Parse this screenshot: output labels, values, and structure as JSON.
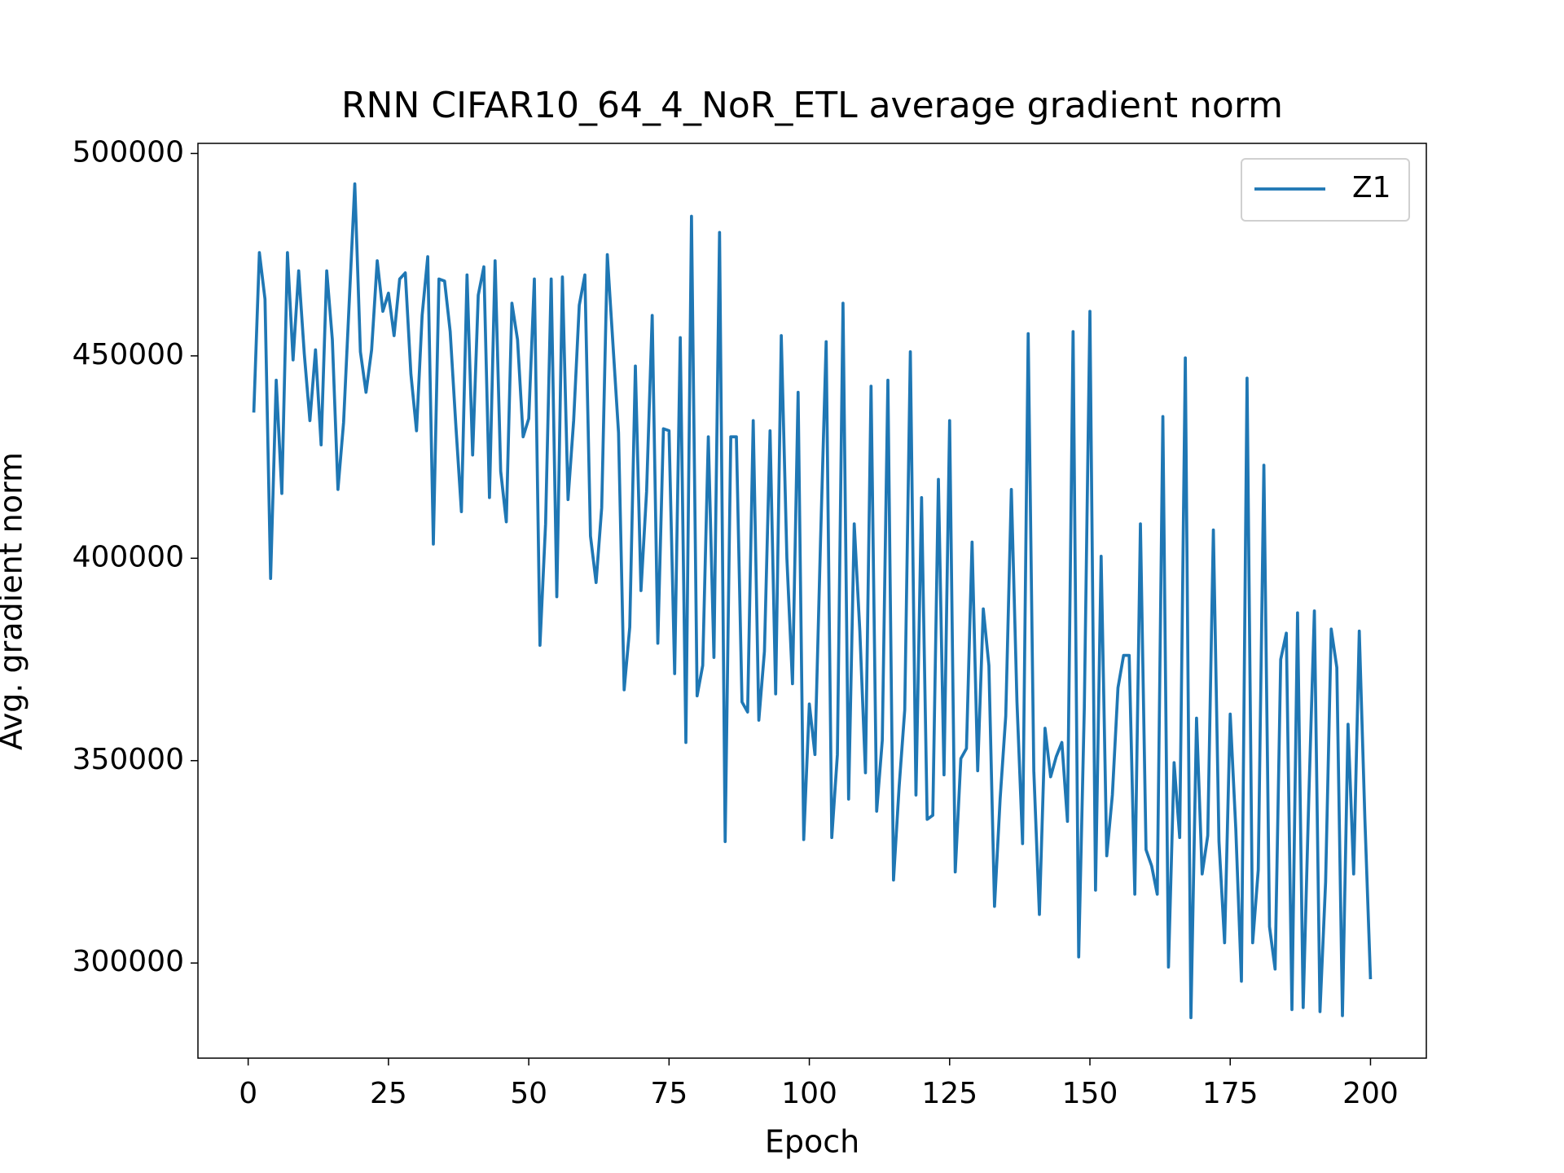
{
  "chart_data": {
    "type": "line",
    "title": "RNN CIFAR10_64_4_NoR_ETL average gradient norm",
    "xlabel": "Epoch",
    "ylabel": "Avg. gradient norm",
    "x": [
      1,
      2,
      3,
      4,
      5,
      6,
      7,
      8,
      9,
      10,
      11,
      12,
      13,
      14,
      15,
      16,
      17,
      18,
      19,
      20,
      21,
      22,
      23,
      24,
      25,
      26,
      27,
      28,
      29,
      30,
      31,
      32,
      33,
      34,
      35,
      36,
      37,
      38,
      39,
      40,
      41,
      42,
      43,
      44,
      45,
      46,
      47,
      48,
      49,
      50,
      51,
      52,
      53,
      54,
      55,
      56,
      57,
      58,
      59,
      60,
      61,
      62,
      63,
      64,
      65,
      66,
      67,
      68,
      69,
      70,
      71,
      72,
      73,
      74,
      75,
      76,
      77,
      78,
      79,
      80,
      81,
      82,
      83,
      84,
      85,
      86,
      87,
      88,
      89,
      90,
      91,
      92,
      93,
      94,
      95,
      96,
      97,
      98,
      99,
      100,
      101,
      102,
      103,
      104,
      105,
      106,
      107,
      108,
      109,
      110,
      111,
      112,
      113,
      114,
      115,
      116,
      117,
      118,
      119,
      120,
      121,
      122,
      123,
      124,
      125,
      126,
      127,
      128,
      129,
      130,
      131,
      132,
      133,
      134,
      135,
      136,
      137,
      138,
      139,
      140,
      141,
      142,
      143,
      144,
      145,
      146,
      147,
      148,
      149,
      150,
      151,
      152,
      153,
      154,
      155,
      156,
      157,
      158,
      159,
      160,
      161,
      162,
      163,
      164,
      165,
      166,
      167,
      168,
      169,
      170,
      171,
      172,
      173,
      174,
      175,
      176,
      177,
      178,
      179,
      180,
      181,
      182,
      183,
      184,
      185,
      186,
      187,
      188,
      189,
      190,
      191,
      192,
      193,
      194,
      195,
      196,
      197,
      198,
      199,
      200
    ],
    "series": [
      {
        "name": "Z1",
        "color": "#1f77b4",
        "values": [
          436000,
          475500,
          464000,
          395000,
          444000,
          416000,
          475500,
          449000,
          471000,
          450500,
          434000,
          451500,
          428000,
          471000,
          454000,
          417000,
          433500,
          463000,
          492500,
          451000,
          441000,
          451500,
          473500,
          461000,
          465500,
          455000,
          469000,
          470500,
          445500,
          431500,
          460000,
          474500,
          403500,
          469000,
          468500,
          456000,
          433000,
          411500,
          470000,
          425500,
          465000,
          472000,
          415000,
          473500,
          421500,
          409000,
          463000,
          454000,
          430000,
          434500,
          469000,
          378500,
          408500,
          469000,
          390500,
          469500,
          414500,
          434000,
          462500,
          470000,
          405500,
          394000,
          412500,
          475000,
          453000,
          431000,
          367500,
          383000,
          447500,
          392000,
          416500,
          460000,
          379000,
          432000,
          431500,
          371500,
          454500,
          354500,
          484500,
          366000,
          373500,
          430000,
          375500,
          480500,
          330000,
          430000,
          430000,
          364500,
          362000,
          434000,
          360000,
          377000,
          431500,
          366500,
          455000,
          400000,
          369000,
          441000,
          330500,
          364000,
          351500,
          404500,
          453500,
          331000,
          351500,
          463000,
          340500,
          408500,
          382000,
          347000,
          442500,
          337500,
          355000,
          444000,
          320500,
          343500,
          362500,
          451000,
          341500,
          415000,
          335500,
          336500,
          419500,
          346500,
          434000,
          322500,
          350500,
          353000,
          404000,
          347500,
          387500,
          373500,
          314000,
          340500,
          361000,
          417000,
          364500,
          329500,
          455500,
          347500,
          312000,
          358000,
          346000,
          351000,
          354500,
          335000,
          456000,
          301500,
          363000,
          461000,
          318000,
          400500,
          326500,
          341500,
          368000,
          376000,
          376000,
          317000,
          408500,
          328000,
          324000,
          317000,
          435000,
          299000,
          349500,
          331000,
          449500,
          286500,
          360500,
          322000,
          331500,
          407000,
          330000,
          305000,
          361500,
          333000,
          295500,
          444500,
          305000,
          323000,
          423000,
          309000,
          298500,
          375000,
          381500,
          288500,
          386500,
          289000,
          340500,
          387000,
          288000,
          320000,
          382500,
          373000,
          287000,
          359000,
          322000,
          382000,
          335500,
          296000
        ]
      }
    ],
    "xlim": [
      -8.95,
      209.95
    ],
    "ylim": [
      276500,
      502500
    ],
    "xticks": [
      0,
      25,
      50,
      75,
      100,
      125,
      150,
      175,
      200
    ],
    "yticks": [
      300000,
      350000,
      400000,
      450000,
      500000
    ],
    "legend": "upper right"
  }
}
